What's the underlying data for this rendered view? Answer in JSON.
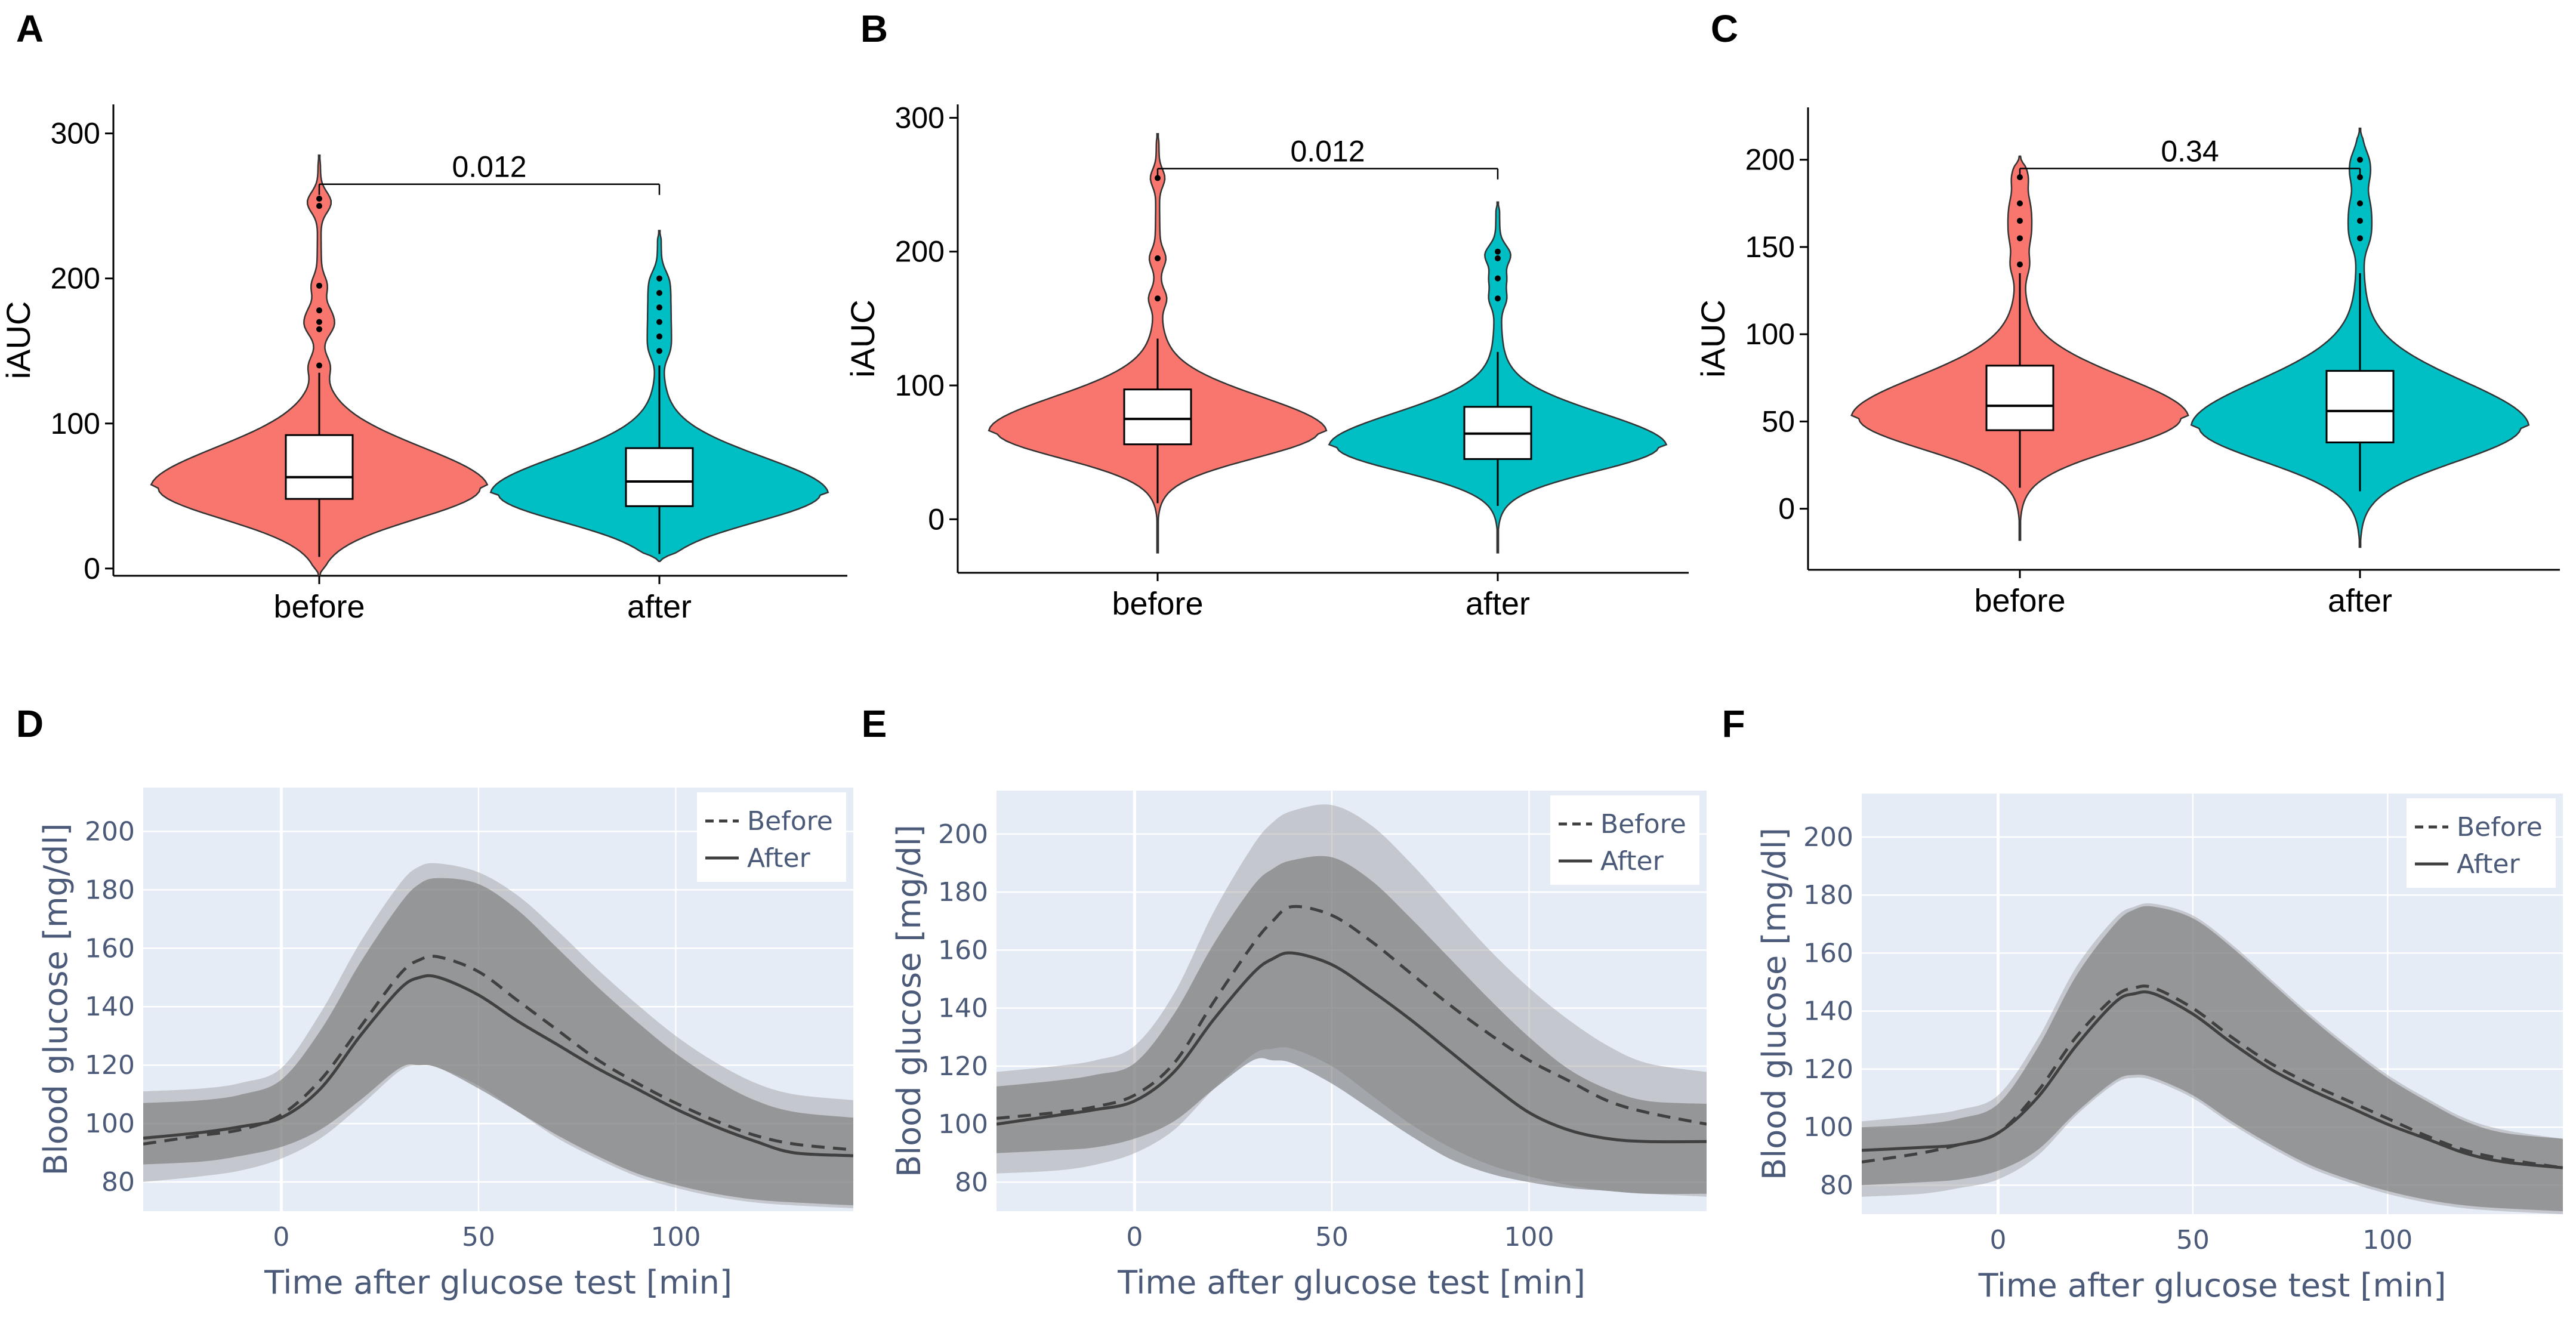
{
  "colors": {
    "before_fill": "#f8766d",
    "after_fill": "#00bfc4",
    "line_panel_bg": "#e5ecf6",
    "band_light": "#c9cdd4",
    "band_dark": "#8c8c8c",
    "line_color": "#404040",
    "axis_text": "#4b5a78"
  },
  "chart_data": [
    {
      "panel": "A",
      "type": "violin",
      "ylabel": "iAUC",
      "categories": [
        "before",
        "after"
      ],
      "ylim": [
        -5,
        320
      ],
      "yticks": [
        0,
        100,
        200,
        300
      ],
      "comparison_label": "0.012",
      "groups": [
        {
          "name": "before",
          "median": 63,
          "q1": 48,
          "q3": 92,
          "whisker_low": 8,
          "whisker_high": 135,
          "min": -5,
          "max": 285,
          "outliers": [
            140,
            165,
            170,
            178,
            195,
            250,
            255
          ]
        },
        {
          "name": "after",
          "median": 60,
          "q1": 43,
          "q3": 83,
          "whisker_low": 10,
          "whisker_high": 140,
          "min": 5,
          "max": 233,
          "outliers": [
            150,
            160,
            170,
            180,
            190,
            200
          ]
        }
      ]
    },
    {
      "panel": "B",
      "type": "violin",
      "ylabel": "iAUC",
      "categories": [
        "before",
        "after"
      ],
      "ylim": [
        -40,
        310
      ],
      "yticks": [
        0,
        100,
        200,
        300
      ],
      "comparison_label": "0.012",
      "groups": [
        {
          "name": "before",
          "median": 75,
          "q1": 56,
          "q3": 97,
          "whisker_low": 12,
          "whisker_high": 135,
          "min": -25,
          "max": 288,
          "outliers": [
            165,
            195,
            255
          ]
        },
        {
          "name": "after",
          "median": 64,
          "q1": 45,
          "q3": 84,
          "whisker_low": 10,
          "whisker_high": 125,
          "min": -25,
          "max": 237,
          "outliers": [
            165,
            180,
            195,
            200
          ]
        }
      ]
    },
    {
      "panel": "C",
      "type": "violin",
      "ylabel": "iAUC",
      "categories": [
        "before",
        "after"
      ],
      "ylim": [
        -35,
        230
      ],
      "yticks": [
        0,
        50,
        100,
        150,
        200
      ],
      "comparison_label": "0.34",
      "groups": [
        {
          "name": "before",
          "median": 59,
          "q1": 45,
          "q3": 82,
          "whisker_low": 12,
          "whisker_high": 135,
          "min": -18,
          "max": 202,
          "outliers": [
            140,
            155,
            165,
            175,
            190
          ]
        },
        {
          "name": "after",
          "median": 56,
          "q1": 38,
          "q3": 79,
          "whisker_low": 10,
          "whisker_high": 135,
          "min": -22,
          "max": 218,
          "outliers": [
            155,
            165,
            175,
            190,
            200
          ]
        }
      ]
    },
    {
      "panel": "D",
      "type": "line",
      "xlabel": "Time after glucose test [min]",
      "ylabel": "Blood glucose [mg/dl]",
      "xlim": [
        -35,
        145
      ],
      "ylim": [
        70,
        215
      ],
      "xticks": [
        0,
        50,
        100
      ],
      "yticks": [
        80,
        100,
        120,
        140,
        160,
        180,
        200
      ],
      "legend": {
        "position": "top-right",
        "entries": [
          "Before",
          "After"
        ]
      },
      "x": [
        -35,
        -20,
        -10,
        0,
        10,
        20,
        30,
        35,
        40,
        50,
        60,
        70,
        80,
        90,
        100,
        110,
        120,
        130,
        145
      ],
      "series": [
        {
          "name": "Before",
          "dash": true,
          "values": [
            93,
            96,
            98,
            103,
            115,
            133,
            151,
            156,
            157,
            152,
            142,
            132,
            122,
            114,
            107,
            101,
            96,
            93,
            91
          ],
          "band": {
            "upper": [
              111,
              112,
              114,
              119,
              138,
              162,
              182,
              188,
              189,
              186,
              178,
              166,
              153,
              141,
              130,
              121,
              114,
              110,
              108
            ],
            "lower": [
              80,
              82,
              84,
              88,
              95,
              106,
              118,
              120,
              119,
              113,
              104,
              95,
              88,
              82,
              78,
              75,
              73,
              72,
              71
            ]
          }
        },
        {
          "name": "After",
          "dash": false,
          "values": [
            95,
            97,
            99,
            102,
            112,
            130,
            146,
            150,
            150,
            144,
            135,
            127,
            119,
            112,
            105,
            99,
            94,
            90,
            89
          ],
          "band": {
            "upper": [
              107,
              108,
              110,
              115,
              132,
              155,
              175,
              182,
              184,
              182,
              173,
              160,
              147,
              135,
              124,
              115,
              108,
              104,
              102
            ],
            "lower": [
              86,
              87,
              89,
              92,
              98,
              108,
              119,
              120,
              119,
              112,
              104,
              96,
              89,
              83,
              79,
              76,
              74,
              73,
              72
            ]
          }
        }
      ]
    },
    {
      "panel": "E",
      "type": "line",
      "xlabel": "Time after glucose test [min]",
      "ylabel": "Blood glucose [mg/dl]",
      "xlim": [
        -35,
        145
      ],
      "ylim": [
        70,
        215
      ],
      "xticks": [
        0,
        50,
        100
      ],
      "yticks": [
        80,
        100,
        120,
        140,
        160,
        180,
        200
      ],
      "legend": {
        "position": "top-right",
        "entries": [
          "Before",
          "After"
        ]
      },
      "x": [
        -35,
        -20,
        -10,
        0,
        10,
        20,
        30,
        35,
        40,
        50,
        60,
        70,
        80,
        90,
        100,
        110,
        120,
        130,
        145
      ],
      "series": [
        {
          "name": "Before",
          "dash": true,
          "values": [
            102,
            104,
            106,
            110,
            121,
            142,
            162,
            170,
            175,
            172,
            163,
            152,
            141,
            131,
            122,
            115,
            108,
            104,
            100
          ],
          "band": {
            "upper": [
              118,
              120,
              122,
              127,
              145,
              173,
              196,
              204,
              208,
              210,
              203,
              190,
              175,
              160,
              147,
              136,
              127,
              121,
              118
            ],
            "lower": [
              83,
              84,
              86,
              90,
              98,
              112,
              124,
              126,
              126,
              120,
              110,
              100,
              92,
              86,
              82,
              79,
              77,
              76,
              75
            ]
          }
        },
        {
          "name": "After",
          "dash": false,
          "values": [
            100,
            103,
            105,
            108,
            118,
            136,
            152,
            157,
            159,
            155,
            146,
            136,
            125,
            114,
            104,
            98,
            95,
            94,
            94
          ],
          "band": {
            "upper": [
              113,
              115,
              117,
              121,
              138,
              162,
              182,
              188,
              191,
              192,
              184,
              171,
              157,
              143,
              130,
              119,
              112,
              108,
              107
            ],
            "lower": [
              90,
              91,
              92,
              95,
              101,
              112,
              122,
              122,
              121,
              114,
              105,
              96,
              88,
              83,
              80,
              78,
              77,
              76,
              76
            ]
          }
        }
      ]
    },
    {
      "panel": "F",
      "type": "line",
      "xlabel": "Time after glucose test [min]",
      "ylabel": "Blood glucose [mg/dl]",
      "xlim": [
        -35,
        145
      ],
      "ylim": [
        70,
        215
      ],
      "xticks": [
        0,
        50,
        100
      ],
      "yticks": [
        80,
        100,
        120,
        140,
        160,
        180,
        200
      ],
      "legend": {
        "position": "top-right",
        "entries": [
          "Before",
          "After"
        ]
      },
      "x": [
        -35,
        -20,
        -10,
        0,
        10,
        20,
        30,
        35,
        40,
        50,
        60,
        70,
        80,
        90,
        100,
        110,
        120,
        130,
        145
      ],
      "series": [
        {
          "name": "Before",
          "dash": true,
          "values": [
            88,
            91,
            94,
            98,
            112,
            131,
            145,
            148,
            148,
            141,
            131,
            122,
            115,
            109,
            103,
            97,
            92,
            89,
            86
          ],
          "band": {
            "upper": [
              102,
              104,
              106,
              111,
              130,
              155,
              172,
              176,
              177,
              173,
              163,
              151,
              139,
              128,
              118,
              110,
              103,
              99,
              96
            ],
            "lower": [
              76,
              77,
              79,
              82,
              90,
              104,
              115,
              117,
              116,
              110,
              101,
              93,
              86,
              81,
              77,
              74,
              72,
              71,
              70
            ]
          }
        },
        {
          "name": "After",
          "dash": false,
          "values": [
            92,
            93,
            94,
            98,
            110,
            128,
            143,
            146,
            146,
            139,
            129,
            120,
            113,
            107,
            101,
            96,
            91,
            88,
            86
          ],
          "band": {
            "upper": [
              100,
              101,
              103,
              108,
              127,
              152,
              170,
              175,
              176,
              172,
              162,
              150,
              138,
              127,
              117,
              109,
              102,
              98,
              96
            ],
            "lower": [
              80,
              81,
              82,
              85,
              92,
              105,
              116,
              118,
              117,
              111,
              102,
              94,
              87,
              82,
              78,
              75,
              73,
              72,
              71
            ]
          }
        }
      ]
    }
  ]
}
